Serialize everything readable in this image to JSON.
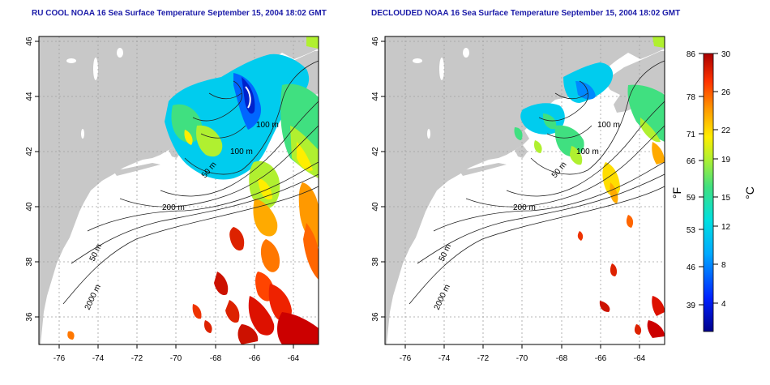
{
  "panels": [
    {
      "title": "RU COOL NOAA 16 Sea Surface Temperature September 15, 2004 18:02 GMT",
      "x_ticks": [
        "-76",
        "-74",
        "-72",
        "-70",
        "-68",
        "-66",
        "-64"
      ],
      "y_ticks": [
        "46",
        "44",
        "42",
        "40",
        "38",
        "36"
      ],
      "contour_labels": [
        "100 m",
        "100 m",
        "50 m",
        "200 m",
        "50 m",
        "2000 m"
      ]
    },
    {
      "title": "DECLOUDED NOAA 16 Sea Surface Temperature September 15, 2004 18:02 GMT",
      "x_ticks": [
        "-76",
        "-74",
        "-72",
        "-70",
        "-68",
        "-66",
        "-64"
      ],
      "y_ticks": [
        "46",
        "44",
        "42",
        "40",
        "38",
        "36"
      ],
      "contour_labels": [
        "100 m",
        "100 m",
        "50 m",
        "200 m",
        "50 m",
        "2000 m"
      ]
    }
  ],
  "colorbar": {
    "fahrenheit_label": "°F",
    "celsius_label": "°C",
    "fahrenheit_ticks": [
      "86",
      "78",
      "71",
      "66",
      "59",
      "53",
      "46",
      "39"
    ],
    "celsius_ticks": [
      "30",
      "26",
      "22",
      "19",
      "15",
      "12",
      "8",
      "4"
    ]
  },
  "colors": {
    "title": "#1a1aa8",
    "land": "#c8c8c8",
    "ocean": "#ffffff",
    "grid": "#a0a0a0"
  }
}
